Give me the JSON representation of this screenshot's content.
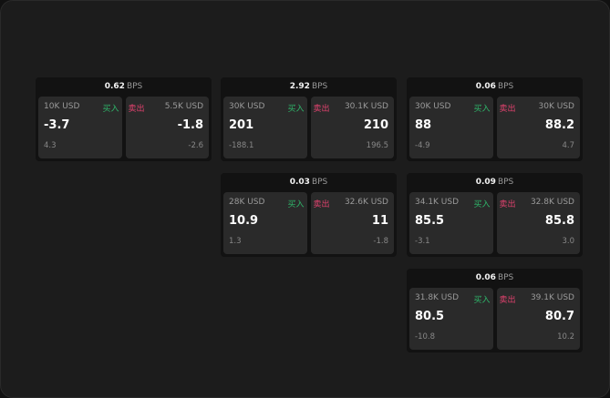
{
  "unit": "BPS",
  "buy_label": "买入",
  "sell_label": "卖出",
  "colors": {
    "buy": "#2fb56a",
    "sell": "#e0426e",
    "background": "#1c1c1c",
    "card": "#121212",
    "side": "#2a2a2a"
  },
  "quotes": [
    {
      "spread": "0.62",
      "buy": {
        "qty": "10K USD",
        "price": "-3.7",
        "change": "4.3"
      },
      "sell": {
        "qty": "5.5K USD",
        "price": "-1.8",
        "change": "-2.6"
      }
    },
    {
      "spread": "2.92",
      "buy": {
        "qty": "30K USD",
        "price": "201",
        "change": "-188.1"
      },
      "sell": {
        "qty": "30.1K USD",
        "price": "210",
        "change": "196.5"
      }
    },
    {
      "spread": "0.06",
      "buy": {
        "qty": "30K USD",
        "price": "88",
        "change": "-4.9"
      },
      "sell": {
        "qty": "30K USD",
        "price": "88.2",
        "change": "4.7"
      }
    },
    {
      "spread": "0.03",
      "buy": {
        "qty": "28K USD",
        "price": "10.9",
        "change": "1.3"
      },
      "sell": {
        "qty": "32.6K USD",
        "price": "11",
        "change": "-1.8"
      }
    },
    {
      "spread": "0.09",
      "buy": {
        "qty": "34.1K USD",
        "price": "85.5",
        "change": "-3.1"
      },
      "sell": {
        "qty": "32.8K USD",
        "price": "85.8",
        "change": "3.0"
      }
    },
    {
      "spread": "0.06",
      "buy": {
        "qty": "31.8K USD",
        "price": "80.5",
        "change": "-10.8"
      },
      "sell": {
        "qty": "39.1K USD",
        "price": "80.7",
        "change": "10.2"
      }
    }
  ]
}
